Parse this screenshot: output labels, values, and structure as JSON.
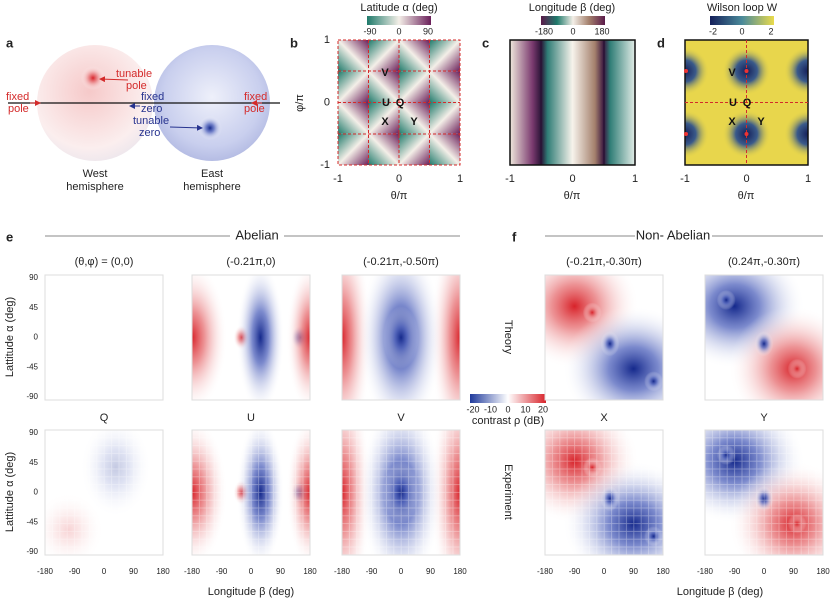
{
  "panels": {
    "a": {
      "label": "a",
      "tunable_pole": [
        "tunable",
        "pole"
      ],
      "fixed_pole_left": [
        "fixed",
        "pole"
      ],
      "fixed_zero": [
        "fixed",
        "zero"
      ],
      "tunable_zero": [
        "tunable",
        "zero"
      ],
      "fixed_pole_right": [
        "fixed",
        "pole"
      ],
      "west": [
        "West",
        "hemisphere"
      ],
      "east": [
        "East",
        "hemisphere"
      ]
    },
    "b": {
      "label": "b",
      "colorbar_title": "Latitude α (deg)",
      "colorbar_ticks": [
        -90,
        0,
        90
      ],
      "xlabel": "θ/π",
      "ylabel": "φ/π",
      "xticks": [
        -1,
        0,
        1
      ],
      "yticks": [
        -1,
        0,
        1
      ],
      "points": [
        "V",
        "U",
        "Q",
        "X",
        "Y"
      ]
    },
    "c": {
      "label": "c",
      "colorbar_title": "Longitude β (deg)",
      "colorbar_ticks": [
        -180,
        0,
        180
      ],
      "xlabel": "θ/π",
      "xticks": [
        -1,
        0,
        1
      ]
    },
    "d": {
      "label": "d",
      "colorbar_title": "Wilson loop W",
      "colorbar_ticks": [
        -2,
        0,
        2
      ],
      "xlabel": "θ/π",
      "xticks": [
        -1,
        0,
        1
      ],
      "points": [
        "V",
        "U",
        "Q",
        "X",
        "Y"
      ]
    },
    "e": {
      "label": "e",
      "group": "Abelian",
      "titles": [
        "(θ,φ) = (0,0)",
        "(-0.21π,0)",
        "(-0.21π,-0.50π)"
      ],
      "maps": [
        "Q",
        "U",
        "V"
      ],
      "ylabel": "Lattitude α (deg)",
      "yticks": [
        90,
        45,
        0,
        -45,
        -90
      ],
      "xticks": [
        -180,
        -90,
        0,
        90,
        180
      ],
      "xlabel": "Longitude β (deg)"
    },
    "f": {
      "label": "f",
      "group": "Non- Abelian",
      "titles": [
        "(-0.21π,-0.30π)",
        "(0.24π,-0.30π)"
      ],
      "maps": [
        "X",
        "Y"
      ],
      "row_labels": [
        "Theory",
        "Experiment"
      ],
      "xticks": [
        -180,
        -90,
        0,
        90,
        180
      ],
      "xlabel": "Longitude β (deg)"
    },
    "colorbar": {
      "title": "contrast ρ (dB)",
      "ticks": [
        -20,
        -10,
        0,
        10,
        20
      ]
    }
  }
}
